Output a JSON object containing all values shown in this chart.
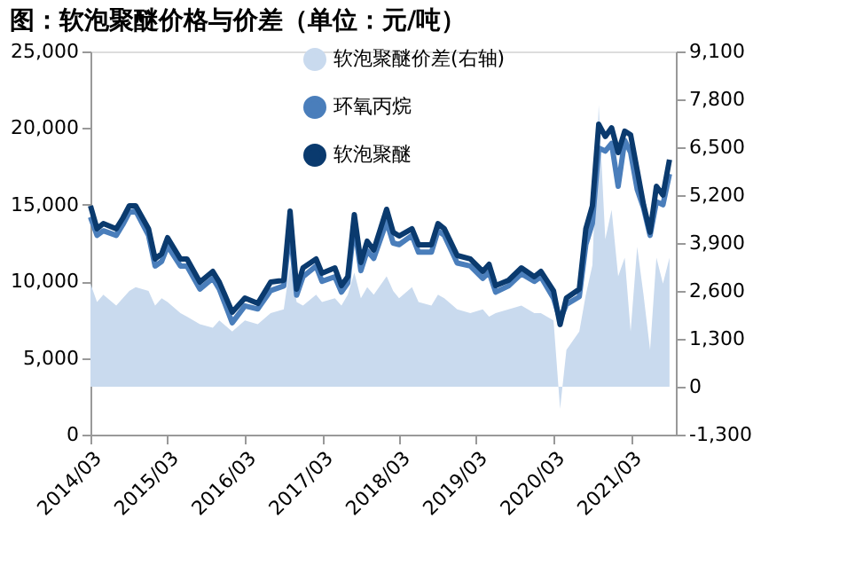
{
  "chart_data": {
    "type": "line",
    "title": "图：软泡聚醚价格与价差（单位：元/吨）",
    "x": [
      "2014-03",
      "2014-04",
      "2014-05",
      "2014-07",
      "2014-08",
      "2014-09",
      "2014-10",
      "2014-12",
      "2015-01",
      "2015-02",
      "2015-03",
      "2015-05",
      "2015-06",
      "2015-08",
      "2015-10",
      "2015-11",
      "2016-01",
      "2016-03",
      "2016-05",
      "2016-07",
      "2016-09",
      "2016-10",
      "2016-11",
      "2016-12",
      "2017-02",
      "2017-03",
      "2017-05",
      "2017-06",
      "2017-07",
      "2017-08",
      "2017-09",
      "2017-10",
      "2017-11",
      "2018-01",
      "2018-02",
      "2018-03",
      "2018-05",
      "2018-06",
      "2018-08",
      "2018-09",
      "2018-10",
      "2018-12",
      "2019-02",
      "2019-04",
      "2019-05",
      "2019-06",
      "2019-08",
      "2019-10",
      "2019-12",
      "2020-01",
      "2020-03",
      "2020-04",
      "2020-05",
      "2020-07",
      "2020-08",
      "2020-09",
      "2020-10",
      "2020-11",
      "2020-12",
      "2021-01",
      "2021-02",
      "2021-03",
      "2021-04",
      "2021-05",
      "2021-06",
      "2021-07",
      "2021-08",
      "2021-09"
    ],
    "series": [
      {
        "name": "软泡聚醚价差(右轴)",
        "type": "area",
        "axis": "y2",
        "color": "#c9daee",
        "values": [
          2800,
          2300,
          2500,
          2200,
          2400,
          2600,
          2700,
          2600,
          2200,
          2400,
          2300,
          2000,
          1900,
          1700,
          1600,
          1800,
          1500,
          1800,
          1700,
          2000,
          2100,
          3300,
          2300,
          2200,
          2500,
          2300,
          2400,
          2200,
          2500,
          3100,
          2400,
          2700,
          2500,
          3000,
          2600,
          2400,
          2700,
          2300,
          2200,
          2500,
          2400,
          2100,
          2000,
          2100,
          1900,
          2000,
          2100,
          2200,
          2000,
          2000,
          1800,
          -600,
          1000,
          1500,
          2500,
          3300,
          7650,
          4000,
          4800,
          3000,
          3500,
          1500,
          3800,
          2500,
          1000,
          3500,
          2800,
          3500
        ]
      },
      {
        "name": "环氧丙烷",
        "color": "#4a7ebb",
        "values": [
          14200,
          13000,
          13300,
          13000,
          13700,
          14500,
          14600,
          13000,
          11000,
          11300,
          12300,
          11000,
          11000,
          9500,
          10200,
          9500,
          7300,
          8400,
          8200,
          9400,
          9700,
          13500,
          9100,
          10300,
          11000,
          10000,
          10300,
          9300,
          9900,
          13700,
          10700,
          12000,
          11500,
          13900,
          12500,
          12400,
          13000,
          11900,
          11900,
          13300,
          13000,
          11200,
          11000,
          10200,
          10600,
          9300,
          9700,
          10500,
          10000,
          10300,
          8900,
          7500,
          8500,
          9000,
          12400,
          13800,
          18700,
          18500,
          19000,
          16200,
          19200,
          18400,
          16000,
          14800,
          13000,
          15200,
          15000,
          17000
        ]
      },
      {
        "name": "软泡聚醚",
        "color": "#0a3a6e",
        "values": [
          14930,
          13430,
          13770,
          13430,
          14120,
          14930,
          14930,
          13430,
          11460,
          11800,
          12850,
          11460,
          11460,
          9950,
          10650,
          9950,
          7990,
          8910,
          8560,
          9950,
          10070,
          14580,
          9490,
          10880,
          11460,
          10530,
          10880,
          9720,
          10300,
          14350,
          11230,
          12620,
          12040,
          14700,
          13200,
          12960,
          13430,
          12390,
          12390,
          13770,
          13430,
          11690,
          11460,
          10650,
          11110,
          9720,
          10070,
          10880,
          10300,
          10650,
          9380,
          7180,
          8910,
          9490,
          13430,
          14930,
          20250,
          19450,
          20020,
          18400,
          19800,
          19560,
          17250,
          15000,
          13200,
          16200,
          15630,
          17940
        ]
      }
    ],
    "xlim": [
      "2014-03",
      "2021-10"
    ],
    "xticks": [
      {
        "value": "2014-03",
        "label": "2014/03"
      },
      {
        "value": "2015-03",
        "label": "2015/03"
      },
      {
        "value": "2016-03",
        "label": "2016/03"
      },
      {
        "value": "2017-03",
        "label": "2017/03"
      },
      {
        "value": "2018-03",
        "label": "2018/03"
      },
      {
        "value": "2019-03",
        "label": "2019/03"
      },
      {
        "value": "2020-03",
        "label": "2020/03"
      },
      {
        "value": "2021-03",
        "label": "2021/03"
      }
    ],
    "ylim": [
      0,
      25000
    ],
    "yticks": [
      0,
      {
        "value": 5000,
        "label": "5,000"
      },
      {
        "value": 10000,
        "label": "10,000"
      },
      {
        "value": 15000,
        "label": "15,000"
      },
      {
        "value": 20000,
        "label": "20,000"
      },
      {
        "value": 25000,
        "label": "25,000"
      }
    ],
    "y2lim": [
      -1300,
      9100
    ],
    "y2ticks": [
      {
        "value": -1300,
        "label": "-1,300"
      },
      0,
      {
        "value": 1300,
        "label": "1,300"
      },
      {
        "value": 2600,
        "label": "2,600"
      },
      {
        "value": 3900,
        "label": "3,900"
      },
      {
        "value": 5200,
        "label": "5,200"
      },
      {
        "value": 6500,
        "label": "6,500"
      },
      {
        "value": 7800,
        "label": "7,800"
      },
      {
        "value": 9100,
        "label": "9,100"
      }
    ],
    "legend": "top",
    "grid": false
  }
}
